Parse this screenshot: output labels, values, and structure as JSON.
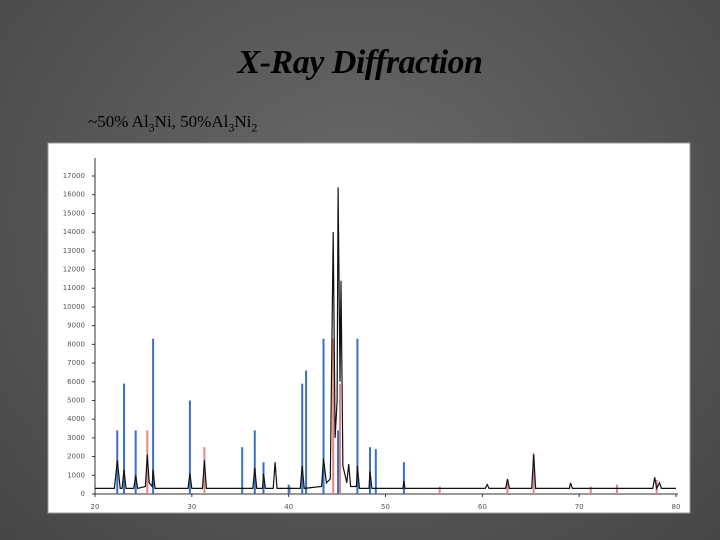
{
  "chart_data": {
    "type": "line",
    "title": "X-Ray Diffraction",
    "subtitle_parts": [
      "~50% Al",
      "3",
      "Ni, 50%Al",
      "3",
      "Ni",
      "2"
    ],
    "xlim": [
      20,
      80
    ],
    "xticks": [
      20,
      30,
      40,
      50,
      60,
      70,
      80
    ],
    "ylim": [
      0,
      17000
    ],
    "yticks": [
      0,
      1000,
      2000,
      3000,
      4000,
      5000,
      6000,
      7000,
      8000,
      9000,
      10000,
      11000,
      12000,
      13000,
      14000,
      15000,
      16000,
      17000
    ],
    "series": [
      {
        "type": "line",
        "color": "#111111",
        "x": [
          20,
          22.0,
          22.3,
          22.6,
          22.8,
          23.0,
          23.2,
          24.0,
          24.2,
          24.4,
          25.2,
          25.4,
          25.6,
          25.9,
          26.0,
          26.2,
          29.6,
          29.8,
          30.0,
          31.1,
          31.3,
          31.5,
          36.3,
          36.5,
          36.7,
          37.3,
          37.4,
          37.6,
          38.4,
          38.6,
          38.8,
          41.2,
          41.4,
          41.6,
          43.4,
          43.6,
          43.9,
          44.3,
          44.6,
          44.8,
          45.0,
          45.1,
          45.3,
          45.4,
          45.6,
          46.0,
          46.2,
          46.4,
          47.0,
          47.1,
          47.3,
          48.3,
          48.4,
          48.6,
          51.8,
          51.9,
          52.0,
          60.3,
          60.5,
          60.7,
          62.4,
          62.6,
          62.8,
          65.1,
          65.3,
          65.5,
          69.0,
          69.1,
          69.3,
          77.6,
          77.8,
          78.0,
          78.3,
          78.5,
          80
        ],
        "values": [
          300,
          300,
          1800,
          300,
          300,
          1300,
          300,
          300,
          1000,
          300,
          400,
          2100,
          600,
          400,
          1300,
          300,
          300,
          1100,
          300,
          300,
          1800,
          300,
          300,
          1400,
          300,
          300,
          1100,
          300,
          300,
          1700,
          300,
          300,
          1500,
          300,
          400,
          1900,
          600,
          800,
          14000,
          3000,
          5000,
          16400,
          6000,
          11400,
          1500,
          600,
          1600,
          400,
          400,
          1500,
          300,
          300,
          1200,
          300,
          300,
          700,
          300,
          300,
          500,
          300,
          300,
          800,
          300,
          300,
          2100,
          300,
          300,
          600,
          300,
          300,
          900,
          300,
          600,
          300,
          300
        ]
      },
      {
        "type": "stem",
        "color": "#e0858c",
        "x": [
          25.4,
          31.3,
          40.1,
          44.6,
          45.3,
          55.6,
          62.6,
          65.3,
          71.2,
          73.9,
          78.0
        ],
        "values": [
          3400,
          2500,
          400,
          8300,
          5900,
          400,
          750,
          2200,
          400,
          500,
          750
        ]
      },
      {
        "type": "stem",
        "color": "#3a6fc4",
        "x": [
          22.3,
          23.0,
          24.2,
          26.0,
          29.8,
          35.2,
          36.5,
          37.4,
          40.0,
          41.4,
          41.8,
          43.6,
          45.1,
          47.1,
          48.4,
          49.0,
          51.9
        ],
        "values": [
          3400,
          5900,
          3400,
          8300,
          5000,
          2500,
          3400,
          1700,
          500,
          5900,
          6600,
          8300,
          3400,
          8300,
          2500,
          2400,
          1700
        ]
      }
    ]
  }
}
